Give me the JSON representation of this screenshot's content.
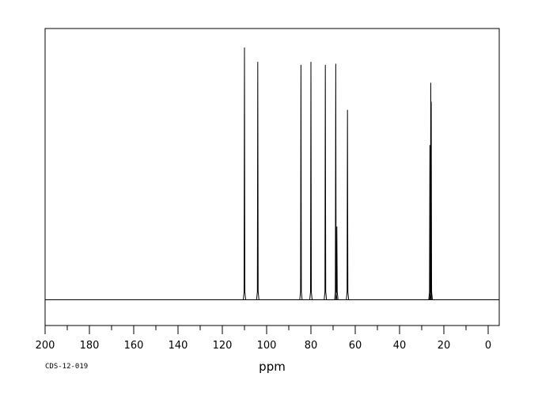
{
  "chart_data": {
    "type": "line",
    "title": "",
    "xlabel": "ppm",
    "ylabel": "",
    "xlim": [
      200,
      -5
    ],
    "x_reversed": true,
    "ylim": [
      0,
      1
    ],
    "x_ticks": [
      200,
      180,
      160,
      140,
      120,
      100,
      80,
      60,
      40,
      20,
      0
    ],
    "grid": false,
    "legend": "none",
    "line_color": "#000000",
    "series": [
      {
        "peaks": [
          {
            "x": 110.0,
            "y": 0.93
          },
          {
            "x": 104.0,
            "y": 0.877
          },
          {
            "x": 84.5,
            "y": 0.866
          },
          {
            "x": 80.0,
            "y": 0.877
          },
          {
            "x": 73.5,
            "y": 0.866
          },
          {
            "x": 68.8,
            "y": 0.87
          },
          {
            "x": 68.3,
            "y": 0.27
          },
          {
            "x": 63.5,
            "y": 0.7
          },
          {
            "x": 26.3,
            "y": 0.57
          },
          {
            "x": 25.9,
            "y": 0.8
          },
          {
            "x": 25.7,
            "y": 0.73
          }
        ]
      }
    ]
  },
  "footer": {
    "code": "CDS-12-019"
  }
}
